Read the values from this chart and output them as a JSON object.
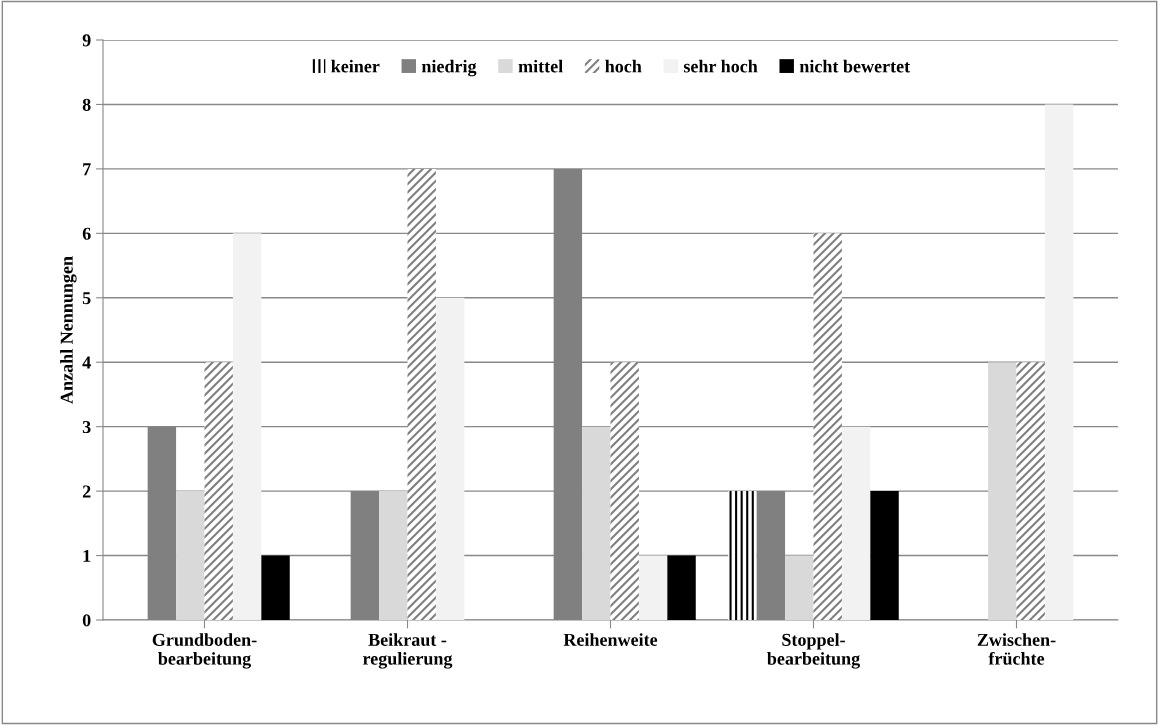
{
  "chart_data": {
    "type": "bar",
    "ylabel": "Anzahl Nennungen",
    "categories": [
      "Grundboden-\nbearbeitung",
      "Beikraut -\nregulierung",
      "Reihenweite",
      "Stoppel-\nbearbeitung",
      "Zwischen-\nfrüchte"
    ],
    "series": [
      {
        "name": "keiner",
        "color": "#ffffff",
        "values": [
          0,
          0,
          0,
          2,
          0
        ]
      },
      {
        "name": "niedrig",
        "color": "#808080",
        "values": [
          3,
          2,
          7,
          2,
          0
        ]
      },
      {
        "name": "mittel",
        "color": "#d9d9d9",
        "values": [
          2,
          2,
          3,
          1,
          4
        ]
      },
      {
        "name": "hoch",
        "color": "#ffffff",
        "values": [
          4,
          7,
          4,
          6,
          4
        ]
      },
      {
        "name": "sehr hoch",
        "color": "#f2f2f2",
        "values": [
          6,
          5,
          1,
          3,
          8
        ]
      },
      {
        "name": "nicht bewertet",
        "color": "#000000",
        "values": [
          1,
          0,
          1,
          2,
          0
        ]
      }
    ],
    "ylim": [
      0,
      9
    ],
    "yticks": [
      0,
      1,
      2,
      3,
      4,
      5,
      6,
      7,
      8,
      9
    ],
    "grid": "y",
    "legend": "top"
  }
}
